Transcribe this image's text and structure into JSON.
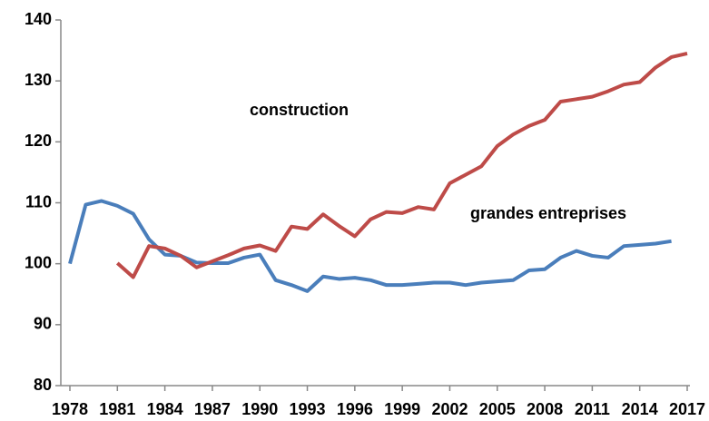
{
  "chart_data": {
    "type": "line",
    "x": [
      1978,
      1979,
      1980,
      1981,
      1982,
      1983,
      1984,
      1985,
      1986,
      1987,
      1988,
      1989,
      1990,
      1991,
      1992,
      1993,
      1994,
      1995,
      1996,
      1997,
      1998,
      1999,
      2000,
      2001,
      2002,
      2003,
      2004,
      2005,
      2006,
      2007,
      2008,
      2009,
      2010,
      2011,
      2012,
      2013,
      2014,
      2015,
      2016,
      2017
    ],
    "series": [
      {
        "name": "grandes entreprises",
        "color": "#4a7ebb",
        "values": [
          100,
          109.7,
          110.3,
          109.5,
          108.2,
          104,
          101.5,
          101.3,
          100.2,
          100.1,
          100.1,
          101,
          101.5,
          97.3,
          96.5,
          95.5,
          97.9,
          97.5,
          97.7,
          97.3,
          96.5,
          96.5,
          96.7,
          96.9,
          96.9,
          96.5,
          96.9,
          97.1,
          97.3,
          98.9,
          99.1,
          101,
          102.1,
          101.3,
          101,
          102.9,
          103.1,
          103.3,
          103.7,
          null
        ]
      },
      {
        "name": "construction",
        "color": "#be4b48",
        "values": [
          null,
          null,
          null,
          100.1,
          97.8,
          102.9,
          102.5,
          101.3,
          99.4,
          100.4,
          101.4,
          102.5,
          103,
          102.1,
          106.1,
          105.7,
          108.1,
          106.2,
          104.5,
          107.3,
          108.5,
          108.3,
          109.3,
          108.9,
          113.2,
          114.6,
          116,
          119.3,
          121.2,
          122.6,
          123.6,
          126.6,
          127,
          127.4,
          128.3,
          129.4,
          129.8,
          132.2,
          133.9,
          134.5
        ]
      }
    ],
    "xlim": [
      1978,
      2017
    ],
    "xticks": [
      1978,
      1981,
      1984,
      1987,
      1990,
      1993,
      1996,
      1999,
      2002,
      2005,
      2008,
      2011,
      2014,
      2017
    ],
    "ylim": [
      80,
      140
    ],
    "yticks": [
      80,
      90,
      100,
      110,
      120,
      130,
      140
    ],
    "grid": false
  }
}
